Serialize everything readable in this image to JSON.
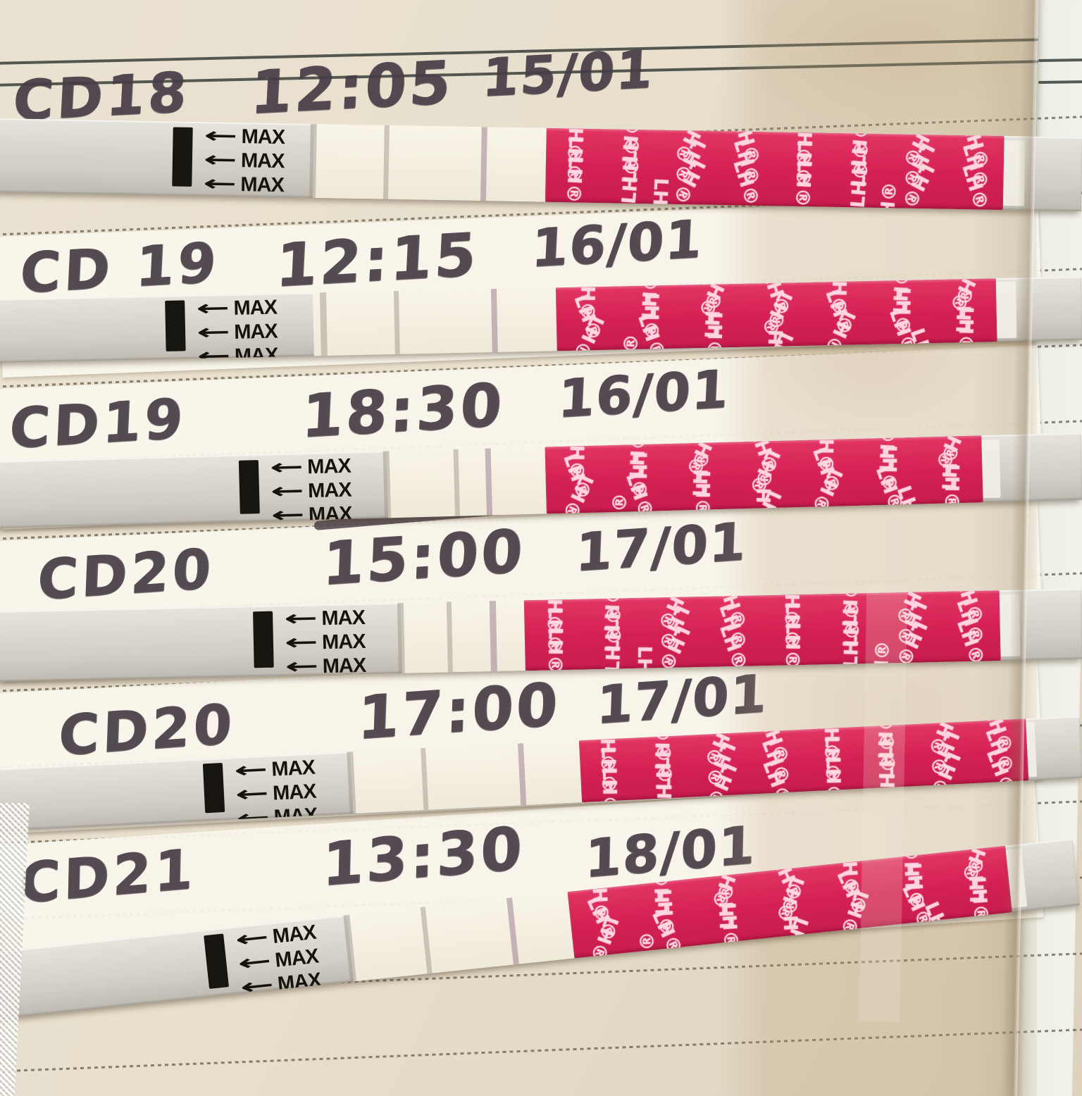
{
  "notebook": {
    "paper_color": "#e8dfcd",
    "label_paper_color": "#f8f4ea",
    "rule_color": "#3c433d",
    "ink_color": "#473c46"
  },
  "strip": {
    "max_label": "MAX",
    "arrow_glyph": "←",
    "pattern_unit": "LH®",
    "pink_color": "#d92a5a"
  },
  "entries": [
    {
      "cd": "CD18",
      "time": "12:05",
      "date": "15/01"
    },
    {
      "cd": "CD 19",
      "time": "12:15",
      "date": "16/01"
    },
    {
      "cd": "CD19",
      "time": "18:30",
      "date": "16/01"
    },
    {
      "cd": "CD20",
      "time": "15:00",
      "date": "17/01"
    },
    {
      "cd": "CD20",
      "time": "17:00",
      "date": "17/01"
    },
    {
      "cd": "CD21",
      "time": "13:30",
      "date": "18/01"
    }
  ]
}
